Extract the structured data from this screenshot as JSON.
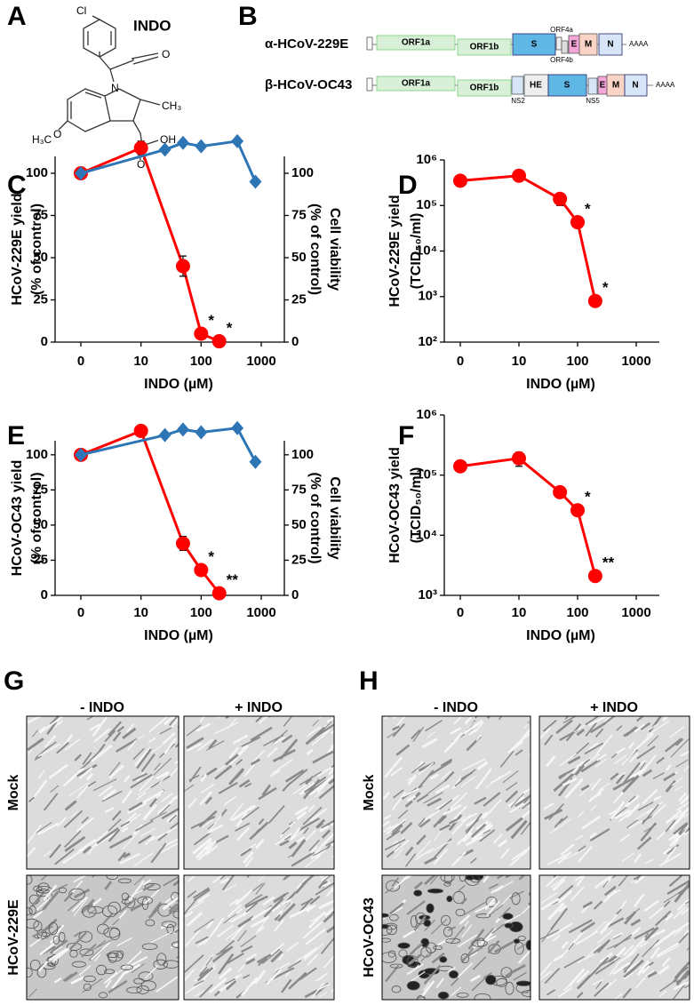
{
  "panel_a": {
    "letter": "A",
    "title": "INDO",
    "atoms": [
      "Cl",
      "O",
      "N",
      "CH₃",
      "H₃C",
      "O",
      "O",
      "OH"
    ]
  },
  "panel_b": {
    "letter": "B",
    "genomes": [
      {
        "name": "α-HCoV-229E",
        "genes": [
          "ORF1a",
          "ORF1b",
          "S",
          "ORF4a",
          "ORF4b",
          "E",
          "M",
          "N"
        ],
        "tail": "AAAA"
      },
      {
        "name": "β-HCoV-OC43",
        "genes": [
          "ORF1a",
          "ORF1b",
          "NS2",
          "HE",
          "S",
          "NS5",
          "E",
          "M",
          "N"
        ],
        "tail": "AAAA"
      }
    ]
  },
  "chart_data": [
    {
      "type": "line",
      "panel": "C",
      "xlabel": "INDO (µM)",
      "ylabel": [
        "HCoV-229E yield",
        "(% of control)"
      ],
      "y2label": [
        "Cell viability",
        "(% of control)"
      ],
      "xscale": "symlog",
      "xlim": [
        0,
        1000
      ],
      "xticks": [
        0,
        10,
        100,
        1000
      ],
      "ylim": [
        0,
        110
      ],
      "yticks": [
        0,
        25,
        50,
        75,
        100
      ],
      "y2lim": [
        0,
        110
      ],
      "y2ticks": [
        0,
        25,
        50,
        75,
        100
      ],
      "series": [
        {
          "color": "#ff0000",
          "marker": "circle",
          "x": [
            0,
            10,
            50,
            100,
            200
          ],
          "values": [
            100,
            115,
            45,
            5,
            0.5
          ],
          "errors": [
            0,
            4,
            6,
            1,
            0.5
          ],
          "point_labels": [
            null,
            null,
            null,
            "*",
            "*"
          ]
        },
        {
          "color": "#2e75b6",
          "marker": "diamond",
          "axis": "y2",
          "x": [
            0,
            25,
            50,
            100,
            400,
            800
          ],
          "values": [
            100,
            114,
            118,
            116,
            119,
            95
          ]
        }
      ]
    },
    {
      "type": "line",
      "panel": "D",
      "xlabel": "INDO (µM)",
      "ylabel": [
        "HCoV-229E yield",
        "(TCID₅₀/ml)"
      ],
      "xscale": "symlog",
      "xlim": [
        0,
        1000
      ],
      "xticks": [
        0,
        10,
        100,
        1000
      ],
      "yscale": "log",
      "ylim": [
        100,
        1000000
      ],
      "yticks": [
        {
          "value": 100,
          "label": "10²"
        },
        {
          "value": 1000,
          "label": "10³"
        },
        {
          "value": 10000,
          "label": "10⁴"
        },
        {
          "value": 100000,
          "label": "10⁵"
        },
        {
          "value": 1000000,
          "label": "10⁶"
        }
      ],
      "series": [
        {
          "color": "#ff0000",
          "marker": "circle",
          "x": [
            0,
            10,
            50,
            100,
            200
          ],
          "values": [
            350000,
            450000,
            140000,
            43000,
            800
          ],
          "errors": [
            0,
            0,
            40000,
            0,
            0
          ],
          "point_labels": [
            null,
            null,
            null,
            "*",
            "*"
          ]
        }
      ]
    },
    {
      "type": "line",
      "panel": "E",
      "xlabel": "INDO (µM)",
      "ylabel": [
        "HCoV-OC43 yield",
        "(% of control)"
      ],
      "y2label": [
        "Cell viability",
        "(% of control)"
      ],
      "xscale": "symlog",
      "xlim": [
        0,
        1000
      ],
      "xticks": [
        0,
        10,
        100,
        1000
      ],
      "ylim": [
        0,
        110
      ],
      "yticks": [
        0,
        25,
        50,
        75,
        100
      ],
      "y2lim": [
        0,
        110
      ],
      "y2ticks": [
        0,
        25,
        50,
        75,
        100
      ],
      "series": [
        {
          "color": "#ff0000",
          "marker": "circle",
          "x": [
            0,
            10,
            50,
            100,
            200
          ],
          "values": [
            100,
            117,
            37,
            18,
            1.5
          ],
          "errors": [
            0,
            4,
            5,
            2,
            1
          ],
          "point_labels": [
            null,
            null,
            null,
            "*",
            "**"
          ]
        },
        {
          "color": "#2e75b6",
          "marker": "diamond",
          "axis": "y2",
          "x": [
            0,
            25,
            50,
            100,
            400,
            800
          ],
          "values": [
            100,
            114,
            118,
            116,
            119,
            95
          ]
        }
      ]
    },
    {
      "type": "line",
      "panel": "F",
      "xlabel": "INDO (µM)",
      "ylabel": [
        "HCoV-OC43 yield",
        "(TCID₅₀/ml)"
      ],
      "xscale": "symlog",
      "xlim": [
        0,
        1000
      ],
      "xticks": [
        0,
        10,
        100,
        1000
      ],
      "yscale": "log",
      "ylim": [
        1000,
        1000000
      ],
      "yticks": [
        {
          "value": 1000,
          "label": "10³"
        },
        {
          "value": 10000,
          "label": "10⁴"
        },
        {
          "value": 100000,
          "label": "10⁵"
        },
        {
          "value": 1000000,
          "label": "10⁶"
        }
      ],
      "series": [
        {
          "color": "#ff0000",
          "marker": "circle",
          "x": [
            0,
            10,
            50,
            100,
            200
          ],
          "values": [
            140000,
            190000,
            52000,
            26000,
            2100
          ],
          "errors": [
            0,
            50000,
            8000,
            0,
            0
          ],
          "point_labels": [
            null,
            null,
            null,
            "*",
            "**"
          ]
        }
      ]
    }
  ],
  "panel_g": {
    "letter": "G",
    "columns": [
      "- INDO",
      "+ INDO"
    ],
    "rows": [
      "Mock",
      "HCoV-229E"
    ]
  },
  "panel_h": {
    "letter": "H",
    "columns": [
      "- INDO",
      "+ INDO"
    ],
    "rows": [
      "Mock",
      "HCoV-OC43"
    ]
  }
}
